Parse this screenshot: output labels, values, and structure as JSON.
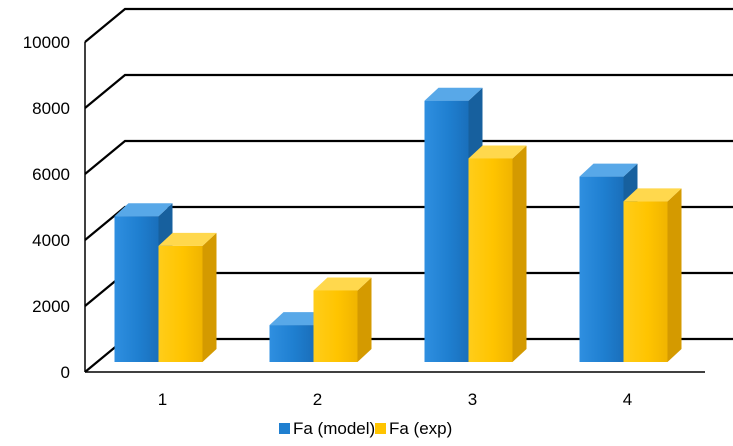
{
  "chart_data": {
    "type": "bar",
    "title": "",
    "xlabel": "",
    "ylabel": "",
    "categories": [
      "1",
      "2",
      "3",
      "4"
    ],
    "series": [
      {
        "name": "Fa (model)",
        "values": [
          4600,
          1300,
          8100,
          5800
        ]
      },
      {
        "name": "Fa (exp)",
        "values": [
          3700,
          2350,
          6350,
          5050
        ]
      }
    ],
    "ylim": [
      0,
      10000
    ],
    "yticks": [
      "0",
      "2000",
      "4000",
      "6000",
      "8000",
      "10000"
    ],
    "grid": true,
    "legend_position": "bottom",
    "style": "3d-clustered-column"
  },
  "colors": {
    "series": [
      "#1f7fd0",
      "#ffc400"
    ],
    "series_top": [
      "#58a8e8",
      "#ffd84d"
    ],
    "series_side": [
      "#17609e",
      "#d49a00"
    ],
    "gridline": "#000000",
    "background": "#ffffff"
  }
}
